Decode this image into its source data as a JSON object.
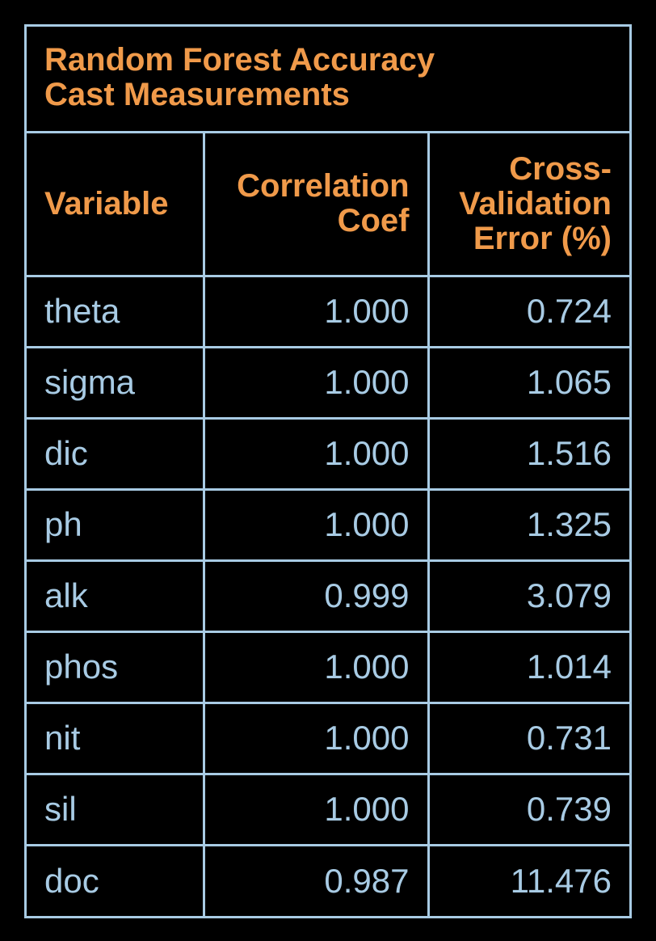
{
  "chart_data": {
    "type": "table",
    "title_lines": [
      "Random Forest Accuracy",
      "Cast Measurements"
    ],
    "columns": [
      {
        "name": "variable",
        "lines": [
          "Variable"
        ]
      },
      {
        "name": "correlation-coef",
        "lines": [
          "Correlation",
          "Coef"
        ]
      },
      {
        "name": "cv-error",
        "lines": [
          "Cross-",
          "Validation",
          "Error (%)"
        ]
      }
    ],
    "rows": [
      [
        "theta",
        "1.000",
        "0.724"
      ],
      [
        "sigma",
        "1.000",
        "1.065"
      ],
      [
        "dic",
        "1.000",
        "1.516"
      ],
      [
        "ph",
        "1.000",
        "1.325"
      ],
      [
        "alk",
        "0.999",
        "3.079"
      ],
      [
        "phos",
        "1.000",
        "1.014"
      ],
      [
        "nit",
        "1.000",
        "0.731"
      ],
      [
        "sil",
        "1.000",
        "0.739"
      ],
      [
        "doc",
        "0.987",
        "11.476"
      ]
    ]
  },
  "colors": {
    "background": "#000000",
    "border": "#a8cbe4",
    "header_text": "#f09a4a",
    "cell_text": "#a8cbe4"
  }
}
